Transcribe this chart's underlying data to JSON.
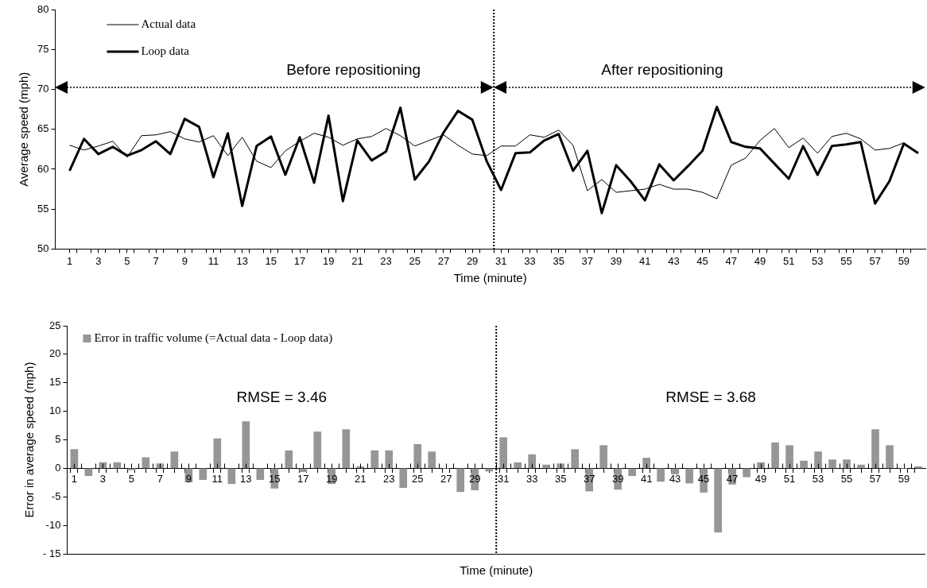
{
  "chart_data": [
    {
      "type": "line",
      "xlabel": "Time (minute)",
      "ylabel": "Average speed (mph)",
      "x": [
        1,
        2,
        3,
        4,
        5,
        6,
        7,
        8,
        9,
        10,
        11,
        12,
        13,
        14,
        15,
        16,
        17,
        18,
        19,
        20,
        21,
        22,
        23,
        24,
        25,
        26,
        27,
        28,
        29,
        30,
        31,
        32,
        33,
        34,
        35,
        36,
        37,
        38,
        39,
        40,
        41,
        42,
        43,
        44,
        45,
        46,
        47,
        48,
        49,
        50,
        51,
        52,
        53,
        54,
        55,
        56,
        57,
        58,
        59,
        60
      ],
      "series": [
        {
          "name": "Actual data",
          "color": "#000000",
          "values": [
            63,
            62.4,
            62.9,
            63.5,
            61.5,
            64.2,
            64.3,
            64.7,
            63.8,
            63.4,
            64.2,
            61.7,
            64,
            61,
            60.2,
            62.3,
            63.5,
            64.5,
            64,
            63,
            63.8,
            64.1,
            65.1,
            64.2,
            62.9,
            63.6,
            64.3,
            63,
            61.9,
            61.7,
            62.9,
            62.9,
            64.3,
            64,
            64.9,
            63,
            57.3,
            58.7,
            57.1,
            57.3,
            57.5,
            58.1,
            57.5,
            57.5,
            57.1,
            56.3,
            60.5,
            61.4,
            63.6,
            65.1,
            62.7,
            63.9,
            62,
            64.1,
            64.5,
            63.8,
            62.4,
            62.6,
            63.3,
            62
          ]
        },
        {
          "name": "Loop data",
          "color": "#000000",
          "values": [
            59.8,
            63.8,
            61.9,
            62.8,
            61.7,
            62.4,
            63.5,
            61.9,
            66.3,
            65.3,
            59,
            64.5,
            55.4,
            62.9,
            64.1,
            59.3,
            64,
            58.3,
            66.7,
            56,
            63.6,
            61.1,
            62.2,
            67.7,
            58.7,
            61,
            64.6,
            67.3,
            66.2,
            61,
            57.4,
            62,
            62.1,
            63.6,
            64.4,
            59.8,
            62.3,
            54.5,
            60.5,
            58.5,
            56.1,
            60.6,
            58.6,
            60.4,
            62.3,
            67.8,
            63.4,
            62.8,
            62.6,
            60.7,
            58.8,
            62.9,
            59.3,
            62.9,
            63.1,
            63.4,
            55.7,
            58.5,
            63.2,
            62
          ]
        }
      ],
      "xlim": [
        0,
        60.5
      ],
      "xticks": [
        1,
        {
          "value": 1.5,
          "label": null
        },
        {
          "value": 2.5,
          "label": null
        },
        3,
        {
          "value": 3.5,
          "label": null
        },
        {
          "value": 4.5,
          "label": null
        },
        5,
        {
          "value": 5.5,
          "label": null
        },
        {
          "value": 6.5,
          "label": null
        },
        7,
        {
          "value": 7.5,
          "label": null
        },
        {
          "value": 8.5,
          "label": null
        },
        9,
        {
          "value": 9.5,
          "label": null
        },
        {
          "value": 10.5,
          "label": null
        },
        11,
        {
          "value": 11.5,
          "label": null
        },
        {
          "value": 12.5,
          "label": null
        },
        13,
        {
          "value": 13.5,
          "label": null
        },
        {
          "value": 14.5,
          "label": null
        },
        15,
        {
          "value": 15.5,
          "label": null
        },
        {
          "value": 16.5,
          "label": null
        },
        17,
        {
          "value": 17.5,
          "label": null
        },
        {
          "value": 18.5,
          "label": null
        },
        19,
        {
          "value": 19.5,
          "label": null
        },
        {
          "value": 20.5,
          "label": null
        },
        21,
        {
          "value": 21.5,
          "label": null
        },
        {
          "value": 22.5,
          "label": null
        },
        23,
        {
          "value": 23.5,
          "label": null
        },
        {
          "value": 24.5,
          "label": null
        },
        25,
        {
          "value": 25.5,
          "label": null
        },
        {
          "value": 26.5,
          "label": null
        },
        27,
        {
          "value": 27.5,
          "label": null
        },
        {
          "value": 28.5,
          "label": null
        },
        29,
        {
          "value": 29.5,
          "label": null
        },
        {
          "value": 30.5,
          "label": null
        },
        31,
        {
          "value": 31.5,
          "label": null
        },
        {
          "value": 32.5,
          "label": null
        },
        33,
        {
          "value": 33.5,
          "label": null
        },
        {
          "value": 34.5,
          "label": null
        },
        35,
        {
          "value": 35.5,
          "label": null
        },
        {
          "value": 36.5,
          "label": null
        },
        37,
        {
          "value": 37.5,
          "label": null
        },
        {
          "value": 38.5,
          "label": null
        },
        39,
        {
          "value": 39.5,
          "label": null
        },
        {
          "value": 40.5,
          "label": null
        },
        41,
        {
          "value": 41.5,
          "label": null
        },
        {
          "value": 42.5,
          "label": null
        },
        43,
        {
          "value": 43.5,
          "label": null
        },
        {
          "value": 44.5,
          "label": null
        },
        45,
        {
          "value": 45.5,
          "label": null
        },
        {
          "value": 46.5,
          "label": null
        },
        47,
        {
          "value": 47.5,
          "label": null
        },
        {
          "value": 48.5,
          "label": null
        },
        49,
        {
          "value": 49.5,
          "label": null
        },
        {
          "value": 50.5,
          "label": null
        },
        51,
        {
          "value": 51.5,
          "label": null
        },
        {
          "value": 52.5,
          "label": null
        },
        53,
        {
          "value": 53.5,
          "label": null
        },
        {
          "value": 54.5,
          "label": null
        },
        55,
        {
          "value": 55.5,
          "label": null
        },
        {
          "value": 56.5,
          "label": null
        },
        57,
        {
          "value": 57.5,
          "label": null
        },
        {
          "value": 58.5,
          "label": null
        },
        59,
        {
          "value": 59.5,
          "label": null
        }
      ],
      "ylim": [
        50,
        80
      ],
      "yticks": [
        50,
        55,
        60,
        65,
        70,
        75,
        80
      ],
      "ref_lines": [
        {
          "axis": "x",
          "value": 30.5,
          "color": "#000000",
          "line_style": "dotted"
        }
      ],
      "annotations": [
        "Before repositioning",
        "After repositioning"
      ],
      "legend": "top left",
      "grid": false
    },
    {
      "type": "bar",
      "xlabel": "Time (minute)",
      "ylabel": "Error in average speed (mph)",
      "x": [
        1,
        2,
        3,
        4,
        5,
        6,
        7,
        8,
        9,
        10,
        11,
        12,
        13,
        14,
        15,
        16,
        17,
        18,
        19,
        20,
        21,
        22,
        23,
        24,
        25,
        26,
        27,
        28,
        29,
        30,
        31,
        32,
        33,
        34,
        35,
        36,
        37,
        38,
        39,
        40,
        41,
        42,
        43,
        44,
        45,
        46,
        47,
        48,
        49,
        50,
        51,
        52,
        53,
        54,
        55,
        56,
        57,
        58,
        59,
        60
      ],
      "series": [
        {
          "name": "Error in traffic volume (=Actual data - Loop data)",
          "color": "#969696",
          "values": [
            3.3,
            -1.3,
            1,
            1,
            -0.3,
            1.9,
            0.8,
            2.9,
            -2.4,
            -2,
            5.2,
            -2.7,
            8.2,
            -2,
            -3.5,
            3.1,
            -0.6,
            6.4,
            -2.7,
            6.8,
            0.3,
            3.1,
            3.1,
            -3.4,
            4.2,
            2.9,
            0,
            -4.1,
            -3.8,
            -0.5,
            5.4,
            1,
            2.4,
            0.6,
            0.8,
            3.3,
            -4,
            4,
            -3.7,
            -1.3,
            1.8,
            -2.3,
            -1,
            -2.6,
            -4.2,
            -11.2,
            -2.8,
            -1.5,
            1,
            4.5,
            4,
            1.3,
            2.9,
            1.5,
            1.5,
            0.6,
            6.8,
            4,
            0,
            0.3
          ]
        }
      ],
      "xlim": [
        0.5,
        60.5
      ],
      "xticks": [
        1,
        {
          "value": 1.5,
          "label": null
        },
        {
          "value": 2.5,
          "label": null
        },
        3,
        {
          "value": 3.5,
          "label": null
        },
        {
          "value": 4.5,
          "label": null
        },
        5,
        {
          "value": 5.5,
          "label": null
        },
        {
          "value": 6.5,
          "label": null
        },
        7,
        {
          "value": 7.5,
          "label": null
        },
        {
          "value": 8.5,
          "label": null
        },
        9,
        {
          "value": 9.5,
          "label": null
        },
        {
          "value": 10.5,
          "label": null
        },
        11,
        {
          "value": 11.5,
          "label": null
        },
        {
          "value": 12.5,
          "label": null
        },
        13,
        {
          "value": 13.5,
          "label": null
        },
        {
          "value": 14.5,
          "label": null
        },
        15,
        {
          "value": 15.5,
          "label": null
        },
        {
          "value": 16.5,
          "label": null
        },
        17,
        {
          "value": 17.5,
          "label": null
        },
        {
          "value": 18.5,
          "label": null
        },
        19,
        {
          "value": 19.5,
          "label": null
        },
        {
          "value": 20.5,
          "label": null
        },
        21,
        {
          "value": 21.5,
          "label": null
        },
        {
          "value": 22.5,
          "label": null
        },
        23,
        {
          "value": 23.5,
          "label": null
        },
        {
          "value": 24.5,
          "label": null
        },
        25,
        {
          "value": 25.5,
          "label": null
        },
        {
          "value": 26.5,
          "label": null
        },
        27,
        {
          "value": 27.5,
          "label": null
        },
        {
          "value": 28.5,
          "label": null
        },
        29,
        {
          "value": 29.5,
          "label": null
        },
        {
          "value": 30.5,
          "label": null
        },
        31,
        {
          "value": 31.5,
          "label": null
        },
        {
          "value": 32.5,
          "label": null
        },
        33,
        {
          "value": 33.5,
          "label": null
        },
        {
          "value": 34.5,
          "label": null
        },
        35,
        {
          "value": 35.5,
          "label": null
        },
        {
          "value": 36.5,
          "label": null
        },
        37,
        {
          "value": 37.5,
          "label": null
        },
        {
          "value": 38.5,
          "label": null
        },
        39,
        {
          "value": 39.5,
          "label": null
        },
        {
          "value": 40.5,
          "label": null
        },
        41,
        {
          "value": 41.5,
          "label": null
        },
        {
          "value": 42.5,
          "label": null
        },
        43,
        {
          "value": 43.5,
          "label": null
        },
        {
          "value": 44.5,
          "label": null
        },
        45,
        {
          "value": 45.5,
          "label": null
        },
        {
          "value": 46.5,
          "label": null
        },
        47,
        {
          "value": 47.5,
          "label": null
        },
        {
          "value": 48.5,
          "label": null
        },
        49,
        {
          "value": 49.5,
          "label": null
        },
        {
          "value": 50.5,
          "label": null
        },
        51,
        {
          "value": 51.5,
          "label": null
        },
        {
          "value": 52.5,
          "label": null
        },
        53,
        {
          "value": 53.5,
          "label": null
        },
        {
          "value": 54.5,
          "label": null
        },
        55,
        {
          "value": 55.5,
          "label": null
        },
        {
          "value": 56.5,
          "label": null
        },
        57,
        {
          "value": 57.5,
          "label": null
        },
        {
          "value": 58.5,
          "label": null
        },
        59,
        {
          "value": 59.5,
          "label": null
        }
      ],
      "ylim": [
        -15,
        25
      ],
      "yticks": [
        {
          "value": -15,
          "label": "- 15"
        },
        -10,
        -5,
        0,
        5,
        10,
        15,
        20,
        25
      ],
      "ref_lines": [
        {
          "axis": "x",
          "value": 30.5,
          "color": "#000000",
          "line_style": "dotted"
        }
      ],
      "annotations": [
        "RMSE = 3.46",
        "RMSE = 3.68"
      ],
      "legend": "top left",
      "grid": false
    }
  ]
}
